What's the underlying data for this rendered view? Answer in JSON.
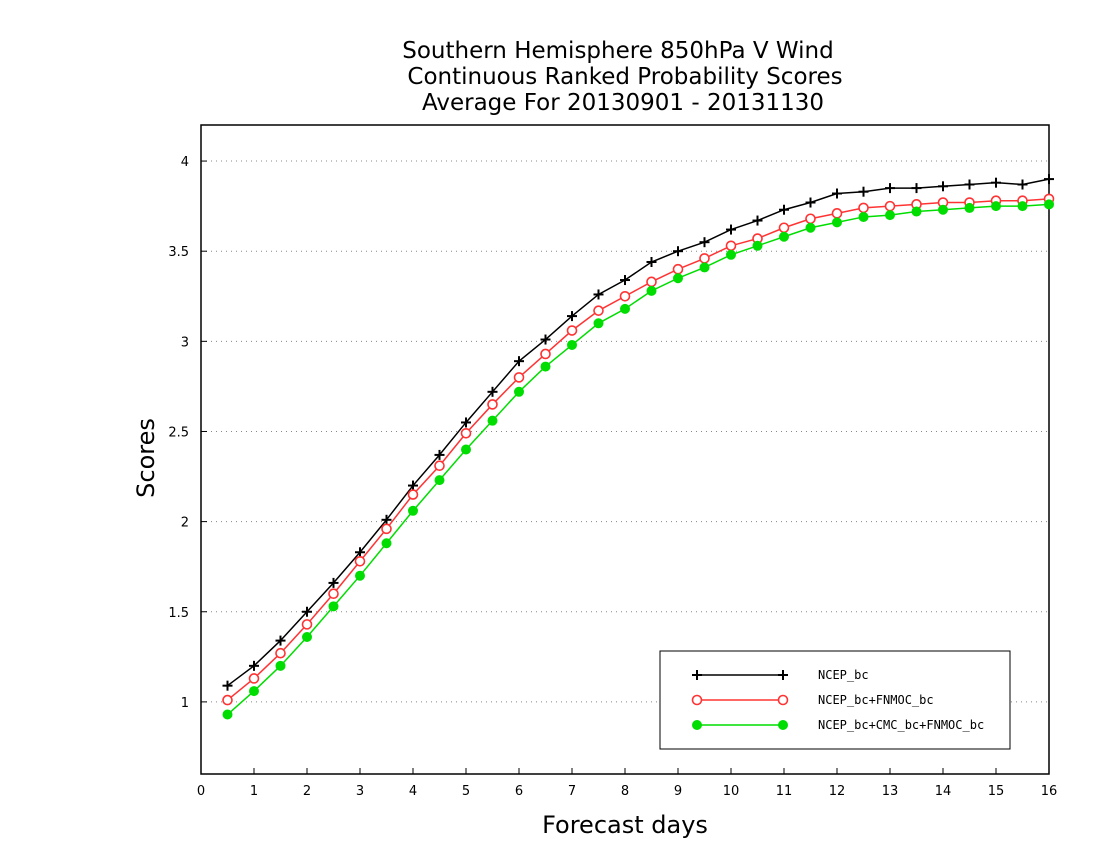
{
  "chart_data": {
    "type": "line",
    "title": [
      "Southern Hemisphere 850hPa V Wind",
      "Continuous Ranked Probability Scores",
      "Average For 20130901 - 20131130"
    ],
    "xlabel": "Forecast days",
    "ylabel": "Scores",
    "xlim": [
      0,
      16
    ],
    "ylim": [
      0.6,
      4.2
    ],
    "xticks": [
      "0",
      "1",
      "2",
      "3",
      "4",
      "5",
      "6",
      "7",
      "8",
      "9",
      "10",
      "11",
      "12",
      "13",
      "14",
      "15",
      "16"
    ],
    "yticks": [
      "1",
      "1.5",
      "2",
      "2.5",
      "3",
      "3.5",
      "4"
    ],
    "grid": "horizontal dotted",
    "legend_position": "bottom-right",
    "x": [
      0.5,
      1,
      1.5,
      2,
      2.5,
      3,
      3.5,
      4,
      4.5,
      5,
      5.5,
      6,
      6.5,
      7,
      7.5,
      8,
      8.5,
      9,
      9.5,
      10,
      10.5,
      11,
      11.5,
      12,
      12.5,
      13,
      13.5,
      14,
      14.5,
      15,
      15.5,
      16
    ],
    "series": [
      {
        "name": "NCEP_bc",
        "color": "#000000",
        "marker": "plus",
        "values": [
          1.09,
          1.2,
          1.34,
          1.5,
          1.66,
          1.83,
          2.01,
          2.2,
          2.37,
          2.55,
          2.72,
          2.89,
          3.01,
          3.14,
          3.26,
          3.34,
          3.44,
          3.5,
          3.55,
          3.62,
          3.67,
          3.73,
          3.77,
          3.82,
          3.83,
          3.85,
          3.85,
          3.86,
          3.87,
          3.88,
          3.87,
          3.9
        ]
      },
      {
        "name": "NCEP_bc+FNMOC_bc",
        "color": "#ff3333",
        "marker": "open-circle",
        "values": [
          1.01,
          1.13,
          1.27,
          1.43,
          1.6,
          1.78,
          1.96,
          2.15,
          2.31,
          2.49,
          2.65,
          2.8,
          2.93,
          3.06,
          3.17,
          3.25,
          3.33,
          3.4,
          3.46,
          3.53,
          3.57,
          3.63,
          3.68,
          3.71,
          3.74,
          3.75,
          3.76,
          3.77,
          3.77,
          3.78,
          3.78,
          3.79
        ]
      },
      {
        "name": "NCEP_bc+CMC_bc+FNMOC_bc",
        "color": "#00dd00",
        "marker": "filled-circle",
        "values": [
          0.93,
          1.06,
          1.2,
          1.36,
          1.53,
          1.7,
          1.88,
          2.06,
          2.23,
          2.4,
          2.56,
          2.72,
          2.86,
          2.98,
          3.1,
          3.18,
          3.28,
          3.35,
          3.41,
          3.48,
          3.53,
          3.58,
          3.63,
          3.66,
          3.69,
          3.7,
          3.72,
          3.73,
          3.74,
          3.75,
          3.75,
          3.76
        ]
      }
    ]
  }
}
